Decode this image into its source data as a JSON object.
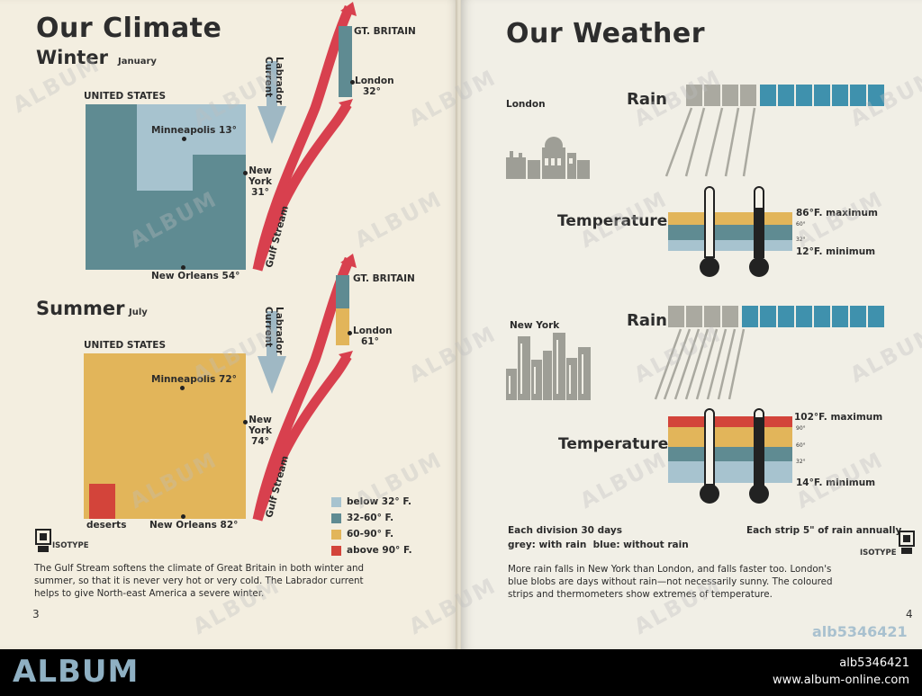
{
  "left_page": {
    "title": "Our Climate",
    "winter": {
      "heading": "Winter",
      "month": "January",
      "us_label": "UNITED STATES",
      "minneapolis": "Minneapolis 13°",
      "new_york": [
        "New",
        "York",
        "31°"
      ],
      "new_orleans": "New Orleans 54°",
      "gb_label": "GT. BRITAIN",
      "london": [
        "London",
        "32°"
      ],
      "labrador": [
        "Labrador",
        "Current"
      ],
      "gulf_stream": "Gulf Stream"
    },
    "summer": {
      "heading": "Summer",
      "month": "July",
      "us_label": "UNITED STATES",
      "minneapolis": "Minneapolis 72°",
      "new_york": [
        "New",
        "York",
        "74°"
      ],
      "new_orleans": "New Orleans 82°",
      "deserts": "deserts",
      "gb_label": "GT. BRITAIN",
      "london": [
        "London",
        "61°"
      ],
      "labrador": [
        "Labrador",
        "Current"
      ],
      "gulf_stream": "Gulf Stream"
    },
    "legend": [
      {
        "label": "below 32° F.",
        "color": "#a7c3cf"
      },
      {
        "label": "32-60° F.",
        "color": "#5f8b92"
      },
      {
        "label": "60-90° F.",
        "color": "#e2b55a"
      },
      {
        "label": "above 90° F.",
        "color": "#d3443a"
      }
    ],
    "isotype": "ISOTYPE",
    "caption": "The Gulf Stream softens the climate of Great Britain in both winter and summer, so that it is never very hot or very cold. The Labrador current helps to give North-east America a severe winter.",
    "page_number": "3"
  },
  "right_page": {
    "title": "Our Weather",
    "london": {
      "city": "London",
      "rain_label": "Rain",
      "temp_label": "Temperature",
      "max": "86°F. maximum",
      "min": "12°F. minimum",
      "tick_60": "60°",
      "tick_32": "32°"
    },
    "new_york": {
      "city": "New York",
      "rain_label": "Rain",
      "temp_label": "Temperature",
      "max": "102°F. maximum",
      "min": "14°F. minimum",
      "tick_90": "90°",
      "tick_60": "60°",
      "tick_32": "32°"
    },
    "notes": {
      "division": "Each division 30 days",
      "strip": "Each strip 5\" of rain annually",
      "grey_blue": "grey: with rain  blue: without rain"
    },
    "isotype": "ISOTYPE",
    "caption": "More rain falls in New York than London, and falls faster too. London's blue blobs are days without rain—not necessarily sunny. The coloured strips and thermometers show extremes of temperature.",
    "page_number": "4",
    "id_stamp": "alb5346421"
  },
  "colors": {
    "cold": "#a7c3cf",
    "cool": "#5f8b92",
    "warm": "#e2b55a",
    "hot": "#d3443a",
    "rain_grey": "#aaa9a0",
    "dry_blue": "#3f91ad",
    "arrow_red": "#d8404e"
  },
  "watermark": "ALBUM",
  "footer": {
    "logo": "ALBUM",
    "id": "alb5346421",
    "url": "www.album-online.com"
  }
}
